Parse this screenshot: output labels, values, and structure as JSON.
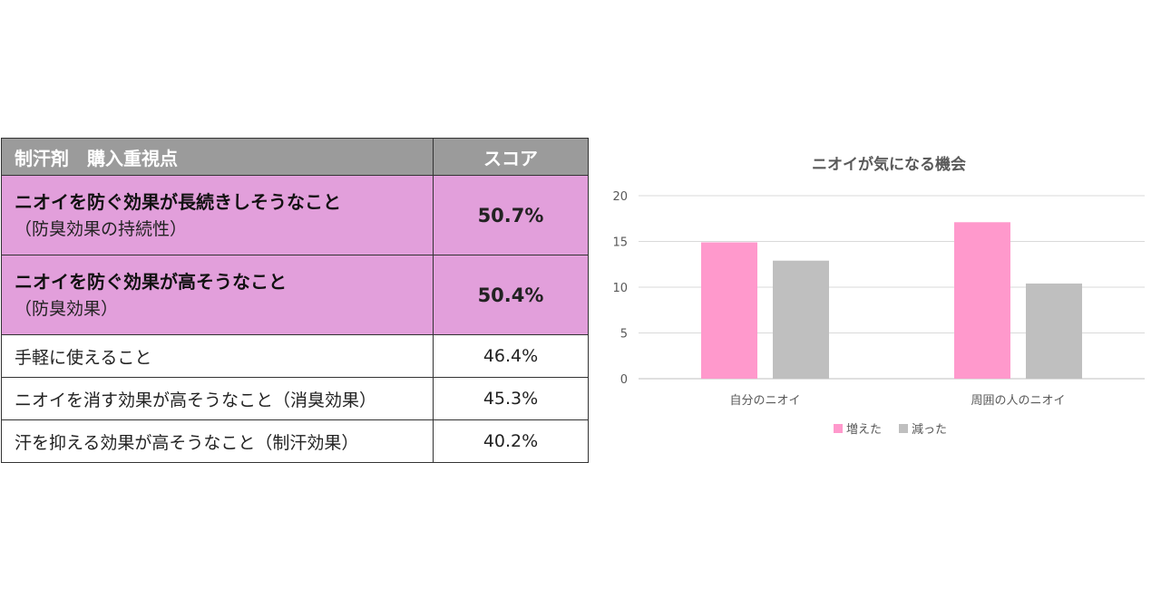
{
  "table": {
    "header": {
      "label": "制汗剤　購入重視点",
      "score": "スコア"
    },
    "highlight_color": "#e29fdb",
    "rows": [
      {
        "main": "ニオイを防ぐ効果が長続きしそうなこと",
        "sub": "（防臭効果の持続性）",
        "score": "50.7%",
        "highlight": true
      },
      {
        "main": "ニオイを防ぐ効果が高そうなこと",
        "sub": "（防臭効果）",
        "score": "50.4%",
        "highlight": true
      },
      {
        "main": "手軽に使えること",
        "score": "46.4%",
        "highlight": false
      },
      {
        "main": "ニオイを消す効果が高そうなこと（消臭効果）",
        "score": "45.3%",
        "highlight": false
      },
      {
        "main": "汗を抑える効果が高そうなこと（制汗効果）",
        "score": "40.2%",
        "highlight": false
      }
    ]
  },
  "chart_data": {
    "type": "bar",
    "title": "ニオイが気になる機会",
    "categories": [
      "自分のニオイ",
      "周囲の人のニオイ"
    ],
    "series": [
      {
        "name": "増えた",
        "values": [
          14.9,
          17.1
        ],
        "color": "#ff99cc"
      },
      {
        "name": "減った",
        "values": [
          12.9,
          10.4
        ],
        "color": "#bfbfbf"
      }
    ],
    "ylim": [
      0,
      20
    ],
    "yticks": [
      "0",
      "5",
      "10",
      "15",
      "20"
    ],
    "grid": true,
    "legend_position": "bottom"
  }
}
